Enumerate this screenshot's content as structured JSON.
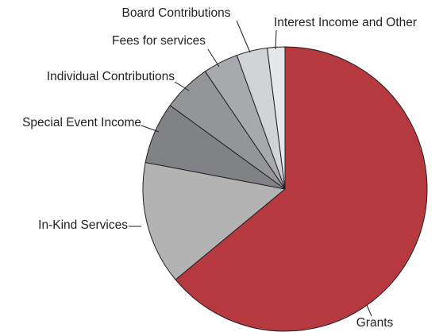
{
  "chart_data": {
    "type": "pie",
    "categories": [
      "Grants",
      "In-Kind Services",
      "Special Event Income",
      "Individual Contributions",
      "Fees for services",
      "Board Contributions",
      "Interest Income and Other"
    ],
    "values": [
      64,
      14,
      7,
      5.5,
      4,
      3.5,
      2
    ],
    "colors": [
      "#b5393f",
      "#b3b3b3",
      "#808285",
      "#939598",
      "#a7a9ac",
      "#d1d3d4",
      "#e6e7e8"
    ]
  }
}
